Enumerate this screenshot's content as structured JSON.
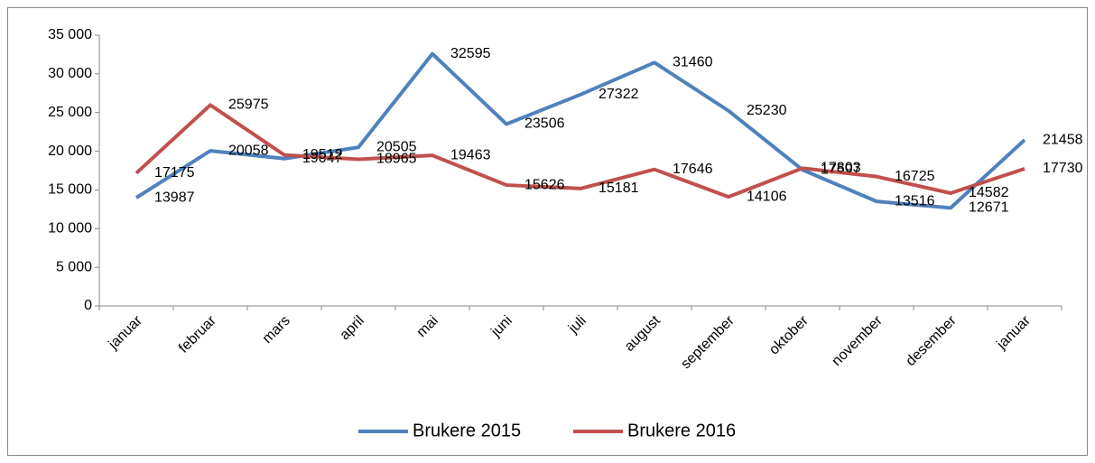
{
  "chart_data": {
    "type": "line",
    "categories": [
      "januar",
      "februar",
      "mars",
      "april",
      "mai",
      "juni",
      "juli",
      "august",
      "september",
      "oktober",
      "november",
      "desember",
      "januar"
    ],
    "series": [
      {
        "name": "Brukere 2015",
        "color": "#4f81bd",
        "values": [
          13987,
          20058,
          19047,
          20505,
          32595,
          23506,
          27322,
          31460,
          25230,
          17597,
          13516,
          12671,
          21458
        ]
      },
      {
        "name": "Brukere 2016",
        "color": "#c0504d",
        "values": [
          17175,
          25975,
          19512,
          18965,
          19463,
          15626,
          15181,
          17646,
          14106,
          17803,
          16725,
          14582,
          17730
        ]
      }
    ],
    "ylim": [
      0,
      35000
    ],
    "yticks": [
      0,
      {
        "value": 5000,
        "label": "5 000"
      },
      {
        "value": 10000,
        "label": "10 000"
      },
      {
        "value": 15000,
        "label": "15 000"
      },
      {
        "value": 20000,
        "label": "20 000"
      },
      {
        "value": 25000,
        "label": "25 000"
      },
      {
        "value": 30000,
        "label": "30 000"
      },
      {
        "value": 35000,
        "label": "35 000"
      }
    ],
    "legend": "bottom"
  }
}
